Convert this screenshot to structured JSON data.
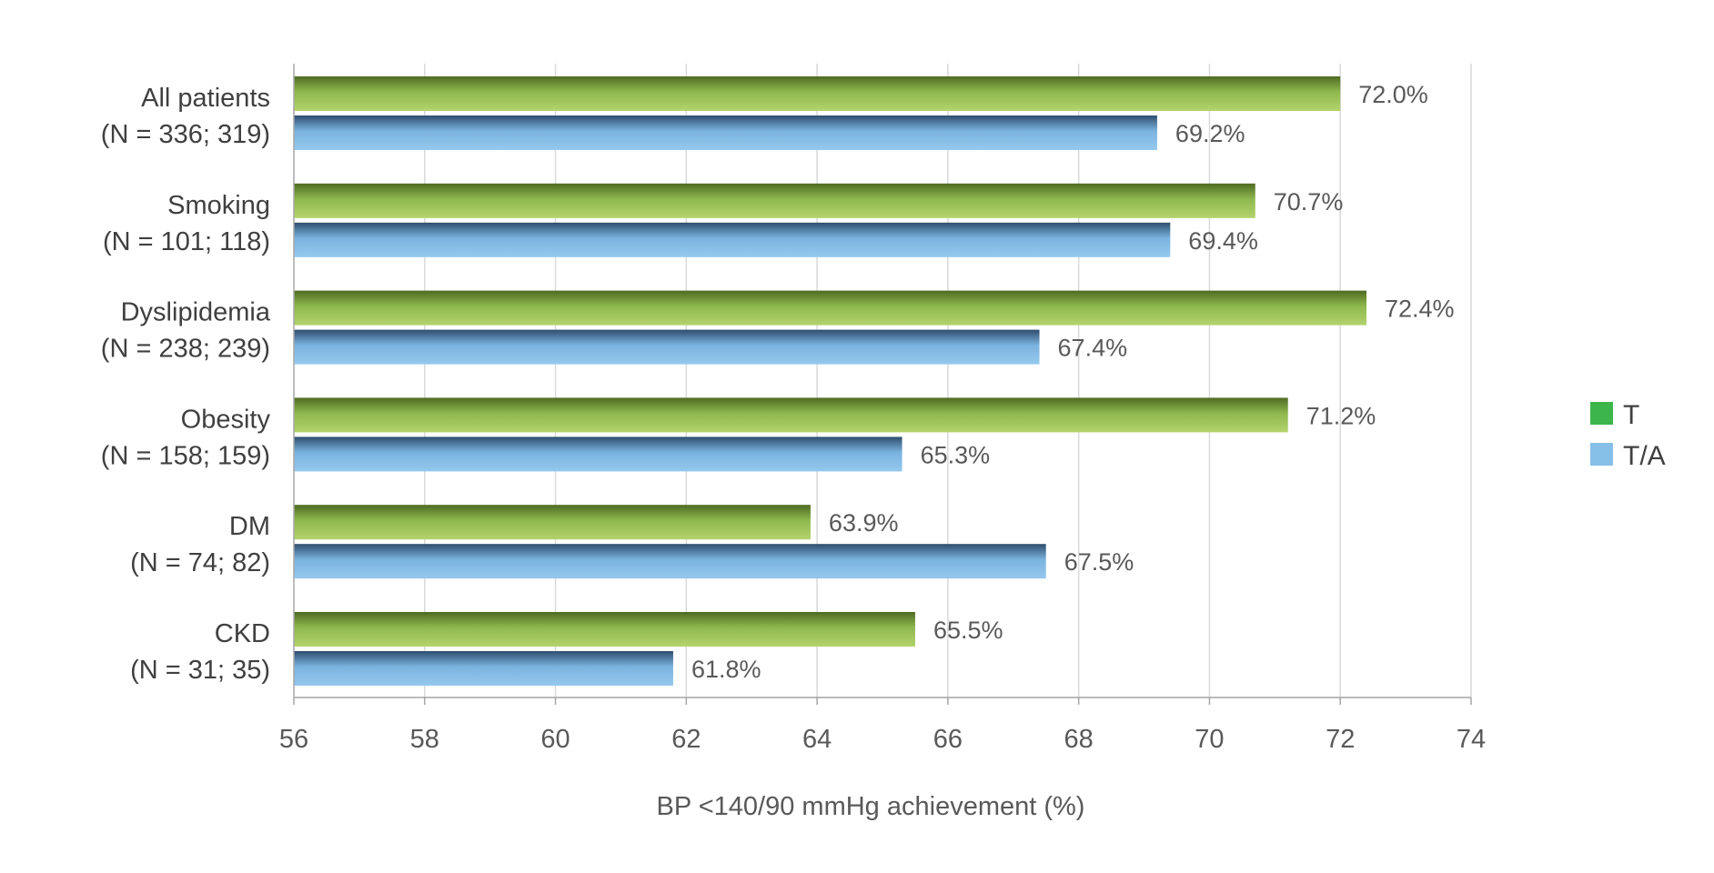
{
  "chart_data": {
    "type": "bar",
    "orientation": "horizontal",
    "categories": [
      [
        "All patients",
        "(N = 336; 319)"
      ],
      [
        "Smoking",
        "(N = 101; 118)"
      ],
      [
        "Dyslipidemia",
        "(N = 238; 239)"
      ],
      [
        "Obesity",
        "(N = 158; 159)"
      ],
      [
        "DM",
        "(N = 74; 82)"
      ],
      [
        "CKD",
        "(N = 31; 35)"
      ]
    ],
    "series": [
      {
        "name": "T",
        "color": "#8ab84a",
        "legend_color": "#3cb54a",
        "values": [
          72.0,
          70.7,
          72.4,
          71.2,
          63.9,
          65.5
        ],
        "labels": [
          "72.0%",
          "70.7%",
          "72.4%",
          "71.2%",
          "63.9%",
          "65.5%"
        ]
      },
      {
        "name": "T/A",
        "color": "#86bfe8",
        "legend_color": "#86bfe8",
        "values": [
          69.2,
          69.4,
          67.4,
          65.3,
          67.5,
          61.8
        ],
        "labels": [
          "69.2%",
          "69.4%",
          "67.4%",
          "65.3%",
          "67.5%",
          "61.8%"
        ]
      }
    ],
    "xlim": [
      56,
      74
    ],
    "xticks": [
      56,
      58,
      60,
      62,
      64,
      66,
      68,
      70,
      72,
      74
    ],
    "xlabel": "BP <140/90 mmHg achievement (%)",
    "ylabel": "",
    "title": "",
    "grid": "vertical",
    "legend": "right"
  }
}
